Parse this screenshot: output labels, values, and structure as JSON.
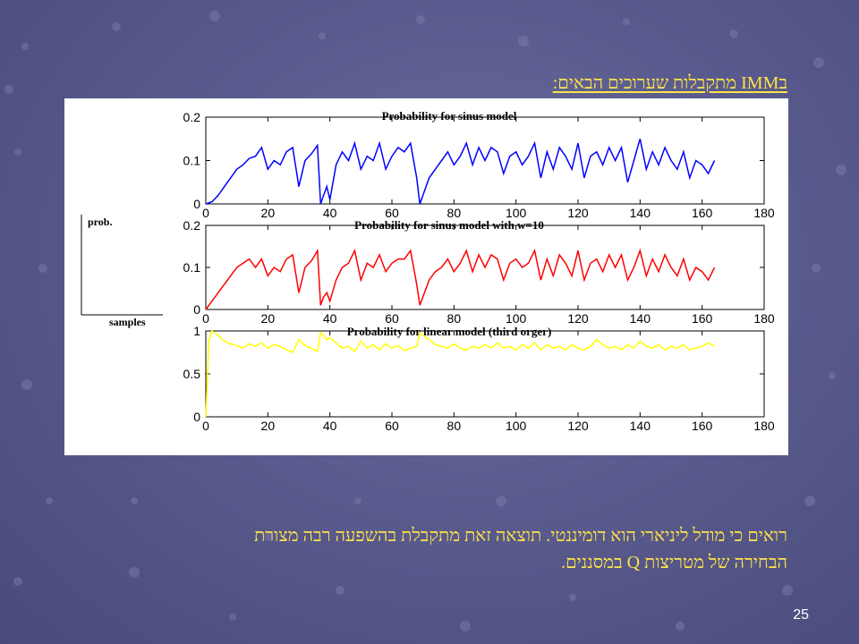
{
  "slide": {
    "title": "בIMM מתקבלות שערוכים הבאים:",
    "body_line1": "רואים כי מודל ליניארי הוא דומיננטי. תוצאה זאת מתקבלת בהשפעה רבה מצורת",
    "body_line2": "הבחירה של מטריצות Q במסננים.",
    "page_number": "25"
  },
  "colors": {
    "background": "#5a5b8e",
    "text_accent": "#ffe34a",
    "sinus": "#0000ff",
    "sinus_w": "#ff0000",
    "linear": "#ffff00"
  },
  "inset": {
    "ylabel": "prob.",
    "xlabel": "samples"
  },
  "chart_data": [
    {
      "type": "line",
      "title": "Probability for sinus model",
      "xlim": [
        0,
        180
      ],
      "ylim": [
        0,
        0.2
      ],
      "xticks": [
        "0",
        "20",
        "40",
        "60",
        "80",
        "100",
        "120",
        "140",
        "160",
        "180"
      ],
      "yticks": [
        "0",
        "0.1",
        "0.2"
      ],
      "color": "#0000ff",
      "x": [
        0,
        2,
        4,
        6,
        8,
        10,
        12,
        14,
        16,
        18,
        20,
        22,
        24,
        26,
        28,
        30,
        32,
        34,
        36,
        37,
        38,
        39,
        40,
        42,
        44,
        46,
        48,
        50,
        52,
        54,
        56,
        58,
        60,
        62,
        64,
        66,
        68,
        69,
        70,
        72,
        74,
        76,
        78,
        80,
        82,
        84,
        86,
        88,
        90,
        92,
        94,
        96,
        98,
        100,
        102,
        104,
        106,
        108,
        110,
        112,
        114,
        116,
        118,
        120,
        122,
        124,
        126,
        128,
        130,
        132,
        134,
        136,
        138,
        140,
        142,
        144,
        146,
        148,
        150,
        152,
        154,
        156,
        158,
        160,
        162,
        164
      ],
      "y": [
        0.0,
        0.005,
        0.02,
        0.04,
        0.06,
        0.08,
        0.09,
        0.105,
        0.11,
        0.13,
        0.08,
        0.1,
        0.09,
        0.12,
        0.13,
        0.04,
        0.1,
        0.115,
        0.135,
        0.0,
        0.02,
        0.04,
        0.01,
        0.09,
        0.12,
        0.1,
        0.14,
        0.08,
        0.11,
        0.1,
        0.14,
        0.08,
        0.11,
        0.13,
        0.12,
        0.14,
        0.06,
        0.0,
        0.02,
        0.06,
        0.08,
        0.1,
        0.12,
        0.09,
        0.11,
        0.14,
        0.09,
        0.13,
        0.1,
        0.13,
        0.12,
        0.07,
        0.11,
        0.12,
        0.09,
        0.11,
        0.14,
        0.06,
        0.12,
        0.08,
        0.13,
        0.11,
        0.08,
        0.14,
        0.06,
        0.11,
        0.12,
        0.09,
        0.13,
        0.1,
        0.13,
        0.05,
        0.1,
        0.15,
        0.08,
        0.12,
        0.09,
        0.13,
        0.1,
        0.08,
        0.12,
        0.06,
        0.1,
        0.09,
        0.07,
        0.1
      ]
    },
    {
      "type": "line",
      "title": "Probability for sinus model with w=10",
      "xlim": [
        0,
        180
      ],
      "ylim": [
        0,
        0.2
      ],
      "xticks": [
        "0",
        "20",
        "40",
        "60",
        "80",
        "100",
        "120",
        "140",
        "160",
        "180"
      ],
      "yticks": [
        "0",
        "0.1",
        "0.2"
      ],
      "color": "#ff0000",
      "x": [
        0,
        2,
        4,
        6,
        8,
        10,
        12,
        14,
        16,
        18,
        20,
        22,
        24,
        26,
        28,
        30,
        32,
        34,
        36,
        37,
        38,
        39,
        40,
        42,
        44,
        46,
        48,
        50,
        52,
        54,
        56,
        58,
        60,
        62,
        64,
        66,
        68,
        69,
        70,
        72,
        74,
        76,
        78,
        80,
        82,
        84,
        86,
        88,
        90,
        92,
        94,
        96,
        98,
        100,
        102,
        104,
        106,
        108,
        110,
        112,
        114,
        116,
        118,
        120,
        122,
        124,
        126,
        128,
        130,
        132,
        134,
        136,
        138,
        140,
        142,
        144,
        146,
        148,
        150,
        152,
        154,
        156,
        158,
        160,
        162,
        164
      ],
      "y": [
        0.0,
        0.02,
        0.04,
        0.06,
        0.08,
        0.1,
        0.11,
        0.12,
        0.1,
        0.12,
        0.08,
        0.1,
        0.09,
        0.12,
        0.13,
        0.04,
        0.1,
        0.115,
        0.14,
        0.01,
        0.03,
        0.04,
        0.02,
        0.07,
        0.1,
        0.11,
        0.14,
        0.07,
        0.11,
        0.1,
        0.13,
        0.09,
        0.11,
        0.12,
        0.12,
        0.14,
        0.06,
        0.01,
        0.03,
        0.07,
        0.09,
        0.1,
        0.12,
        0.09,
        0.11,
        0.14,
        0.09,
        0.13,
        0.1,
        0.13,
        0.12,
        0.07,
        0.11,
        0.12,
        0.1,
        0.11,
        0.14,
        0.07,
        0.12,
        0.08,
        0.13,
        0.11,
        0.08,
        0.14,
        0.07,
        0.11,
        0.12,
        0.09,
        0.13,
        0.1,
        0.13,
        0.07,
        0.1,
        0.14,
        0.08,
        0.12,
        0.09,
        0.13,
        0.1,
        0.08,
        0.12,
        0.07,
        0.1,
        0.09,
        0.07,
        0.1
      ]
    },
    {
      "type": "line",
      "title": "Probability for linear model (third orger)",
      "xlim": [
        0,
        180
      ],
      "ylim": [
        0,
        1
      ],
      "xticks": [
        "0",
        "20",
        "40",
        "60",
        "80",
        "100",
        "120",
        "140",
        "160",
        "180"
      ],
      "yticks": [
        "0",
        "0.5",
        "1"
      ],
      "color": "#ffff00",
      "x": [
        0,
        1,
        2,
        4,
        6,
        8,
        10,
        12,
        14,
        16,
        18,
        20,
        22,
        24,
        26,
        28,
        30,
        32,
        34,
        36,
        37,
        38,
        39,
        40,
        42,
        44,
        46,
        48,
        50,
        52,
        54,
        56,
        58,
        60,
        62,
        64,
        66,
        68,
        69,
        70,
        72,
        74,
        76,
        78,
        80,
        82,
        84,
        86,
        88,
        90,
        92,
        94,
        96,
        98,
        100,
        102,
        104,
        106,
        108,
        110,
        112,
        114,
        116,
        118,
        120,
        122,
        124,
        126,
        128,
        130,
        132,
        134,
        136,
        138,
        140,
        142,
        144,
        146,
        148,
        150,
        152,
        154,
        156,
        158,
        160,
        162,
        164
      ],
      "y": [
        0.0,
        0.9,
        1.0,
        0.95,
        0.88,
        0.85,
        0.83,
        0.8,
        0.85,
        0.82,
        0.86,
        0.8,
        0.84,
        0.82,
        0.78,
        0.75,
        0.9,
        0.83,
        0.8,
        0.76,
        0.98,
        0.95,
        0.9,
        0.92,
        0.86,
        0.8,
        0.82,
        0.76,
        0.88,
        0.8,
        0.84,
        0.78,
        0.85,
        0.8,
        0.83,
        0.77,
        0.8,
        0.82,
        0.98,
        0.95,
        0.9,
        0.84,
        0.82,
        0.8,
        0.85,
        0.8,
        0.78,
        0.82,
        0.8,
        0.84,
        0.8,
        0.86,
        0.8,
        0.82,
        0.78,
        0.84,
        0.8,
        0.86,
        0.78,
        0.84,
        0.8,
        0.82,
        0.78,
        0.84,
        0.8,
        0.78,
        0.82,
        0.9,
        0.84,
        0.8,
        0.82,
        0.78,
        0.84,
        0.8,
        0.88,
        0.82,
        0.8,
        0.84,
        0.78,
        0.82,
        0.8,
        0.84,
        0.78,
        0.8,
        0.82,
        0.86,
        0.82
      ]
    }
  ]
}
